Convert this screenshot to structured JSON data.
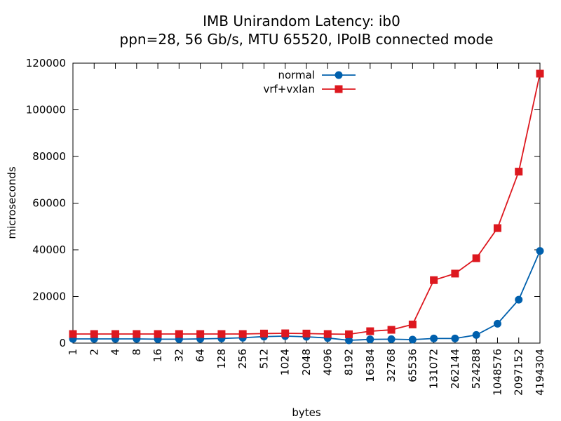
{
  "chart_data": {
    "type": "line",
    "title": "IMB Unirandom Latency: ib0",
    "subtitle": "ppn=28, 56 Gb/s, MTU 65520, IPoIB connected mode",
    "xlabel": "bytes",
    "ylabel": "microseconds",
    "ylim": [
      0,
      120000
    ],
    "yticks": [
      "0",
      "20000",
      "40000",
      "60000",
      "80000",
      "100000",
      "120000"
    ],
    "categories": [
      "1",
      "2",
      "4",
      "8",
      "16",
      "32",
      "64",
      "128",
      "256",
      "512",
      "1024",
      "2048",
      "4096",
      "8192",
      "16384",
      "32768",
      "65536",
      "131072",
      "262144",
      "524288",
      "1048576",
      "2097152",
      "4194304"
    ],
    "legend_position": "top-center",
    "grid": false,
    "series": [
      {
        "name": "normal",
        "color": "#0060ad",
        "marker": "circle",
        "values": [
          1800,
          1800,
          1800,
          1800,
          1700,
          1700,
          1800,
          2000,
          2300,
          2800,
          3000,
          2700,
          2200,
          1200,
          1600,
          1700,
          1500,
          2000,
          2000,
          3500,
          8300,
          18600,
          39500
        ]
      },
      {
        "name": "vrf+vxlan",
        "color": "#dd181f",
        "marker": "square",
        "values": [
          3900,
          3900,
          3900,
          3900,
          3900,
          3900,
          3900,
          3900,
          3900,
          4100,
          4200,
          4100,
          3900,
          3800,
          5100,
          5700,
          8000,
          27000,
          29800,
          36400,
          49300,
          73500,
          115500
        ]
      }
    ]
  }
}
